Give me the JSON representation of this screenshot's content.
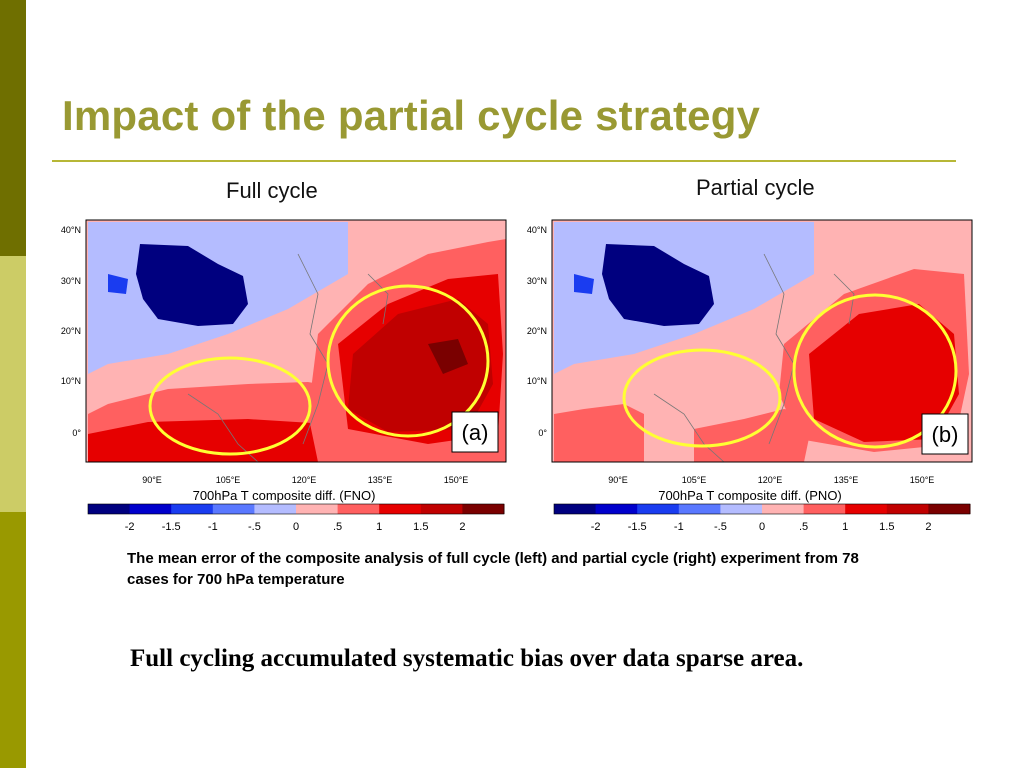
{
  "slide": {
    "title": "Impact of the partial cycle strategy",
    "caption": "The mean error of the composite analysis of full cycle (left) and partial cycle (right) experiment from 78 cases for 700 hPa temperature",
    "conclusion": "Full cycling accumulated systematic bias over data sparse area."
  },
  "theme": {
    "accent": "#999933",
    "sidebar_top": "#6f6f00",
    "sidebar_mid": "#cccc66",
    "sidebar_bottom": "#999900"
  },
  "panels": [
    {
      "heading": "Full cycle",
      "tag": "(a)",
      "plot_title": "700hPa T composite diff. (FNO)",
      "lat_labels": [
        "40°N",
        "30°N",
        "20°N",
        "10°N",
        "0°"
      ],
      "lon_labels": [
        "90°E",
        "105°E",
        "120°E",
        "135°E",
        "150°E"
      ],
      "colorbar_labels": [
        "-2",
        "-1.5",
        "-1",
        "-.5",
        "0",
        ".5",
        "1",
        "1.5",
        "2"
      ]
    },
    {
      "heading": "Partial cycle",
      "tag": "(b)",
      "plot_title": "700hPa T composite diff. (PNO)",
      "lat_labels": [
        "40°N",
        "30°N",
        "20°N",
        "10°N",
        "0°"
      ],
      "lon_labels": [
        "90°E",
        "105°E",
        "120°E",
        "135°E",
        "150°E"
      ],
      "colorbar_labels": [
        "-2",
        "-1.5",
        "-1",
        "-.5",
        "0",
        ".5",
        "1",
        "1.5",
        "2"
      ]
    }
  ],
  "colorbar_colors": [
    "#00007f",
    "#0000cc",
    "#1a3cf0",
    "#5a78ff",
    "#b4bcff",
    "#ffb3b3",
    "#ff6060",
    "#e60000",
    "#c00000",
    "#7a0000"
  ]
}
